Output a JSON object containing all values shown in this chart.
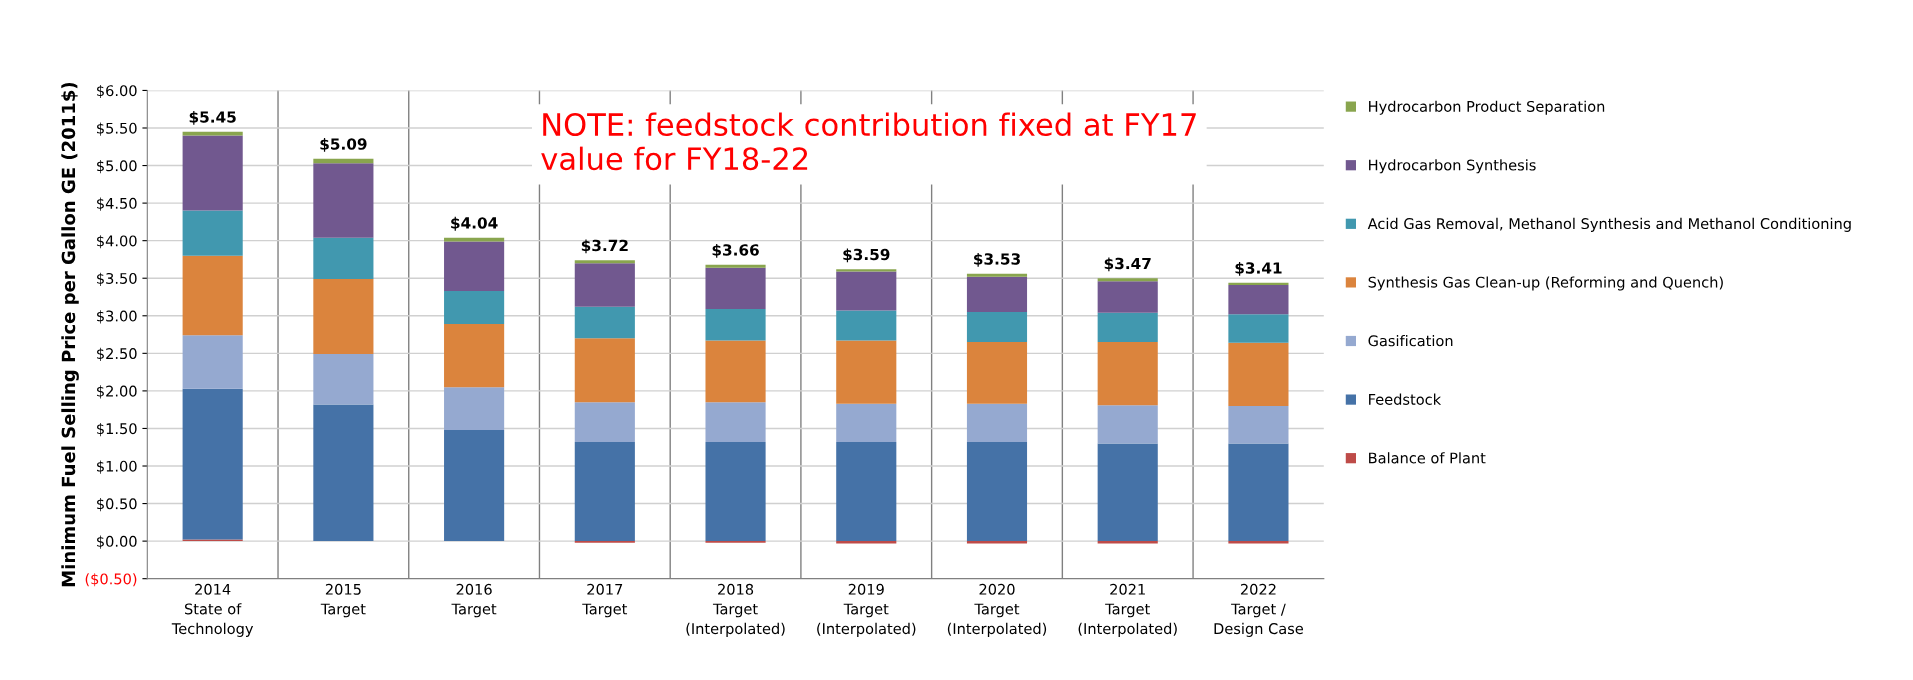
{
  "chart_data": {
    "type": "bar",
    "stacked": true,
    "ylabel": "Minimum Fuel Selling Price per Gallon GE (2011$)",
    "categories": [
      "2014\nState of\nTechnology",
      "2015\nTarget",
      "2016\nTarget",
      "2017\nTarget",
      "2018\nTarget\n(Interpolated)",
      "2019\nTarget\n(Interpolated)",
      "2020\nTarget\n(Interpolated)",
      "2021\nTarget\n(Interpolated)",
      "2022\nTarget /\nDesign Case"
    ],
    "series": [
      {
        "name": "Balance of Plant",
        "color": "#be4b48",
        "values": [
          0.02,
          0,
          0,
          -0.02,
          -0.02,
          -0.03,
          -0.03,
          -0.03,
          -0.03
        ]
      },
      {
        "name": "Feedstock",
        "color": "#4572a7",
        "values": [
          2.01,
          1.82,
          1.48,
          1.32,
          1.32,
          1.32,
          1.32,
          1.3,
          1.3
        ]
      },
      {
        "name": "Gasification",
        "color": "#95a9d0",
        "values": [
          0.71,
          0.67,
          0.57,
          0.53,
          0.53,
          0.51,
          0.51,
          0.51,
          0.5
        ]
      },
      {
        "name": "Synthesis Gas Clean-up (Reforming and Quench)",
        "color": "#db843d",
        "values": [
          1.06,
          1.0,
          0.84,
          0.85,
          0.82,
          0.84,
          0.82,
          0.84,
          0.84
        ]
      },
      {
        "name": "Acid Gas Removal, Methanol Synthesis and Methanol Conditioning",
        "color": "#4198af",
        "values": [
          0.6,
          0.55,
          0.44,
          0.42,
          0.42,
          0.4,
          0.4,
          0.39,
          0.38
        ]
      },
      {
        "name": "Hydrocarbon Synthesis",
        "color": "#71588f",
        "values": [
          1.0,
          0.99,
          0.66,
          0.58,
          0.55,
          0.52,
          0.47,
          0.42,
          0.39
        ]
      },
      {
        "name": "Hydrocarbon Product Separation",
        "color": "#89a54e",
        "values": [
          0.05,
          0.06,
          0.05,
          0.04,
          0.04,
          0.03,
          0.04,
          0.04,
          0.03
        ]
      }
    ],
    "totals": [
      "$5.45",
      "$5.09",
      "$4.04",
      "$3.72",
      "$3.66",
      "$3.59",
      "$3.53",
      "$3.47",
      "$3.41"
    ],
    "ylim": [
      -0.5,
      6.0
    ],
    "yticks": [
      {
        "value": -0.5,
        "label": "($0.50)"
      },
      {
        "value": 0,
        "label": "$0.00"
      },
      {
        "value": 0.5,
        "label": "$0.50"
      },
      {
        "value": 1.0,
        "label": "$1.00"
      },
      {
        "value": 1.5,
        "label": "$1.50"
      },
      {
        "value": 2.0,
        "label": "$2.00"
      },
      {
        "value": 2.5,
        "label": "$2.50"
      },
      {
        "value": 3.0,
        "label": "$3.00"
      },
      {
        "value": 3.5,
        "label": "$3.50"
      },
      {
        "value": 4.0,
        "label": "$4.00"
      },
      {
        "value": 4.5,
        "label": "$4.50"
      },
      {
        "value": 5.0,
        "label": "$5.00"
      },
      {
        "value": 5.5,
        "label": "$5.50"
      },
      {
        "value": 6.0,
        "label": "$6.00"
      }
    ],
    "annotations": [
      "NOTE: feedstock contribution fixed at FY17\nvalue for FY18-22"
    ],
    "grid": true,
    "legend": "right"
  }
}
